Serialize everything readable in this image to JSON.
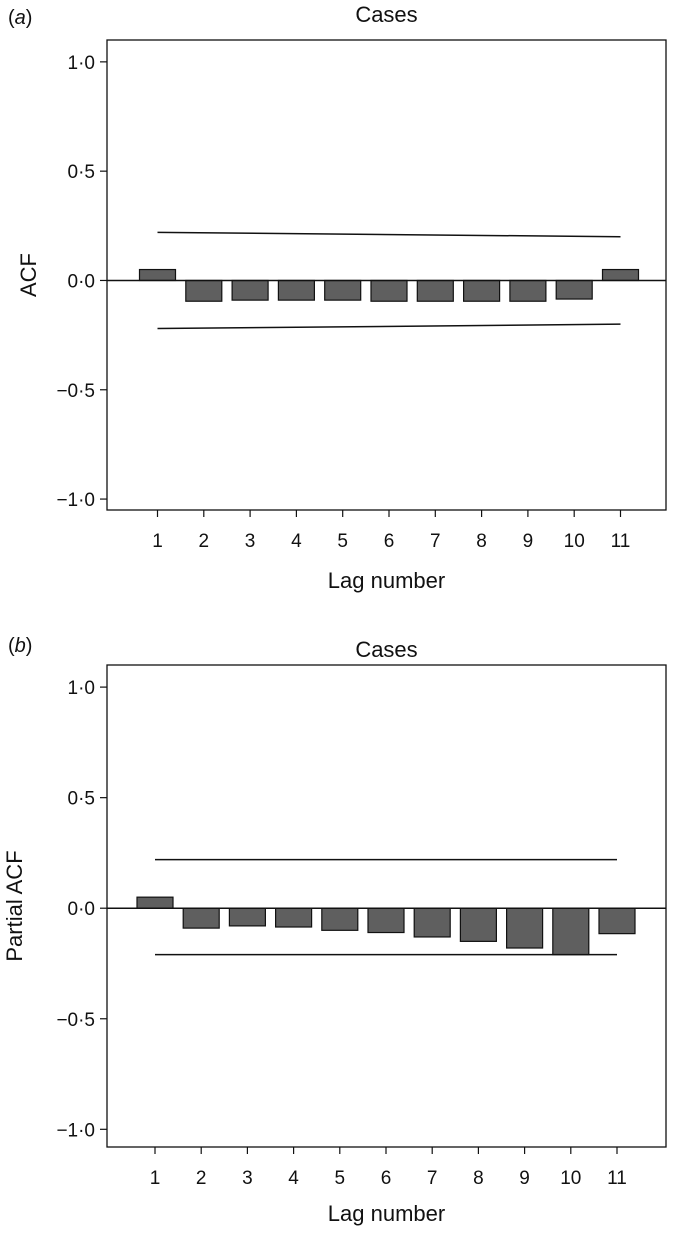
{
  "chart_data": [
    {
      "type": "bar",
      "panel_label": "a",
      "title": "Cases",
      "xlabel": "Lag number",
      "ylabel": "ACF",
      "categories": [
        "1",
        "2",
        "3",
        "4",
        "5",
        "6",
        "7",
        "8",
        "9",
        "10",
        "11"
      ],
      "values": [
        0.05,
        -0.095,
        -0.09,
        -0.09,
        -0.09,
        -0.095,
        -0.095,
        -0.095,
        -0.095,
        -0.085,
        0.05
      ],
      "ylim": [
        -1.05,
        1.1
      ],
      "yticks": [
        1.0,
        0.5,
        0.0,
        -0.5,
        -1.0
      ],
      "ytick_labels": [
        "1·0",
        "0·5",
        "0·0",
        "−0·5",
        "−1·0"
      ],
      "confidence_limits": {
        "upper": {
          "lag1": 0.22,
          "lag11": 0.2
        },
        "lower": {
          "lag1": -0.22,
          "lag11": -0.2
        }
      },
      "grid": false
    },
    {
      "type": "bar",
      "panel_label": "b",
      "title": "Cases",
      "xlabel": "Lag number",
      "ylabel": "Partial ACF",
      "categories": [
        "1",
        "2",
        "3",
        "4",
        "5",
        "6",
        "7",
        "8",
        "9",
        "10",
        "11"
      ],
      "values": [
        0.05,
        -0.09,
        -0.08,
        -0.085,
        -0.1,
        -0.11,
        -0.13,
        -0.15,
        -0.18,
        -0.21,
        -0.115
      ],
      "ylim": [
        -1.08,
        1.1
      ],
      "yticks": [
        1.0,
        0.5,
        0.0,
        -0.5,
        -1.0
      ],
      "ytick_labels": [
        "1·0",
        "0·5",
        "0·0",
        "−0·5",
        "−1·0"
      ],
      "confidence_limits": {
        "upper": {
          "lag1": 0.22,
          "lag11": 0.22
        },
        "lower": {
          "lag1": -0.21,
          "lag11": -0.21
        }
      },
      "grid": false
    }
  ]
}
